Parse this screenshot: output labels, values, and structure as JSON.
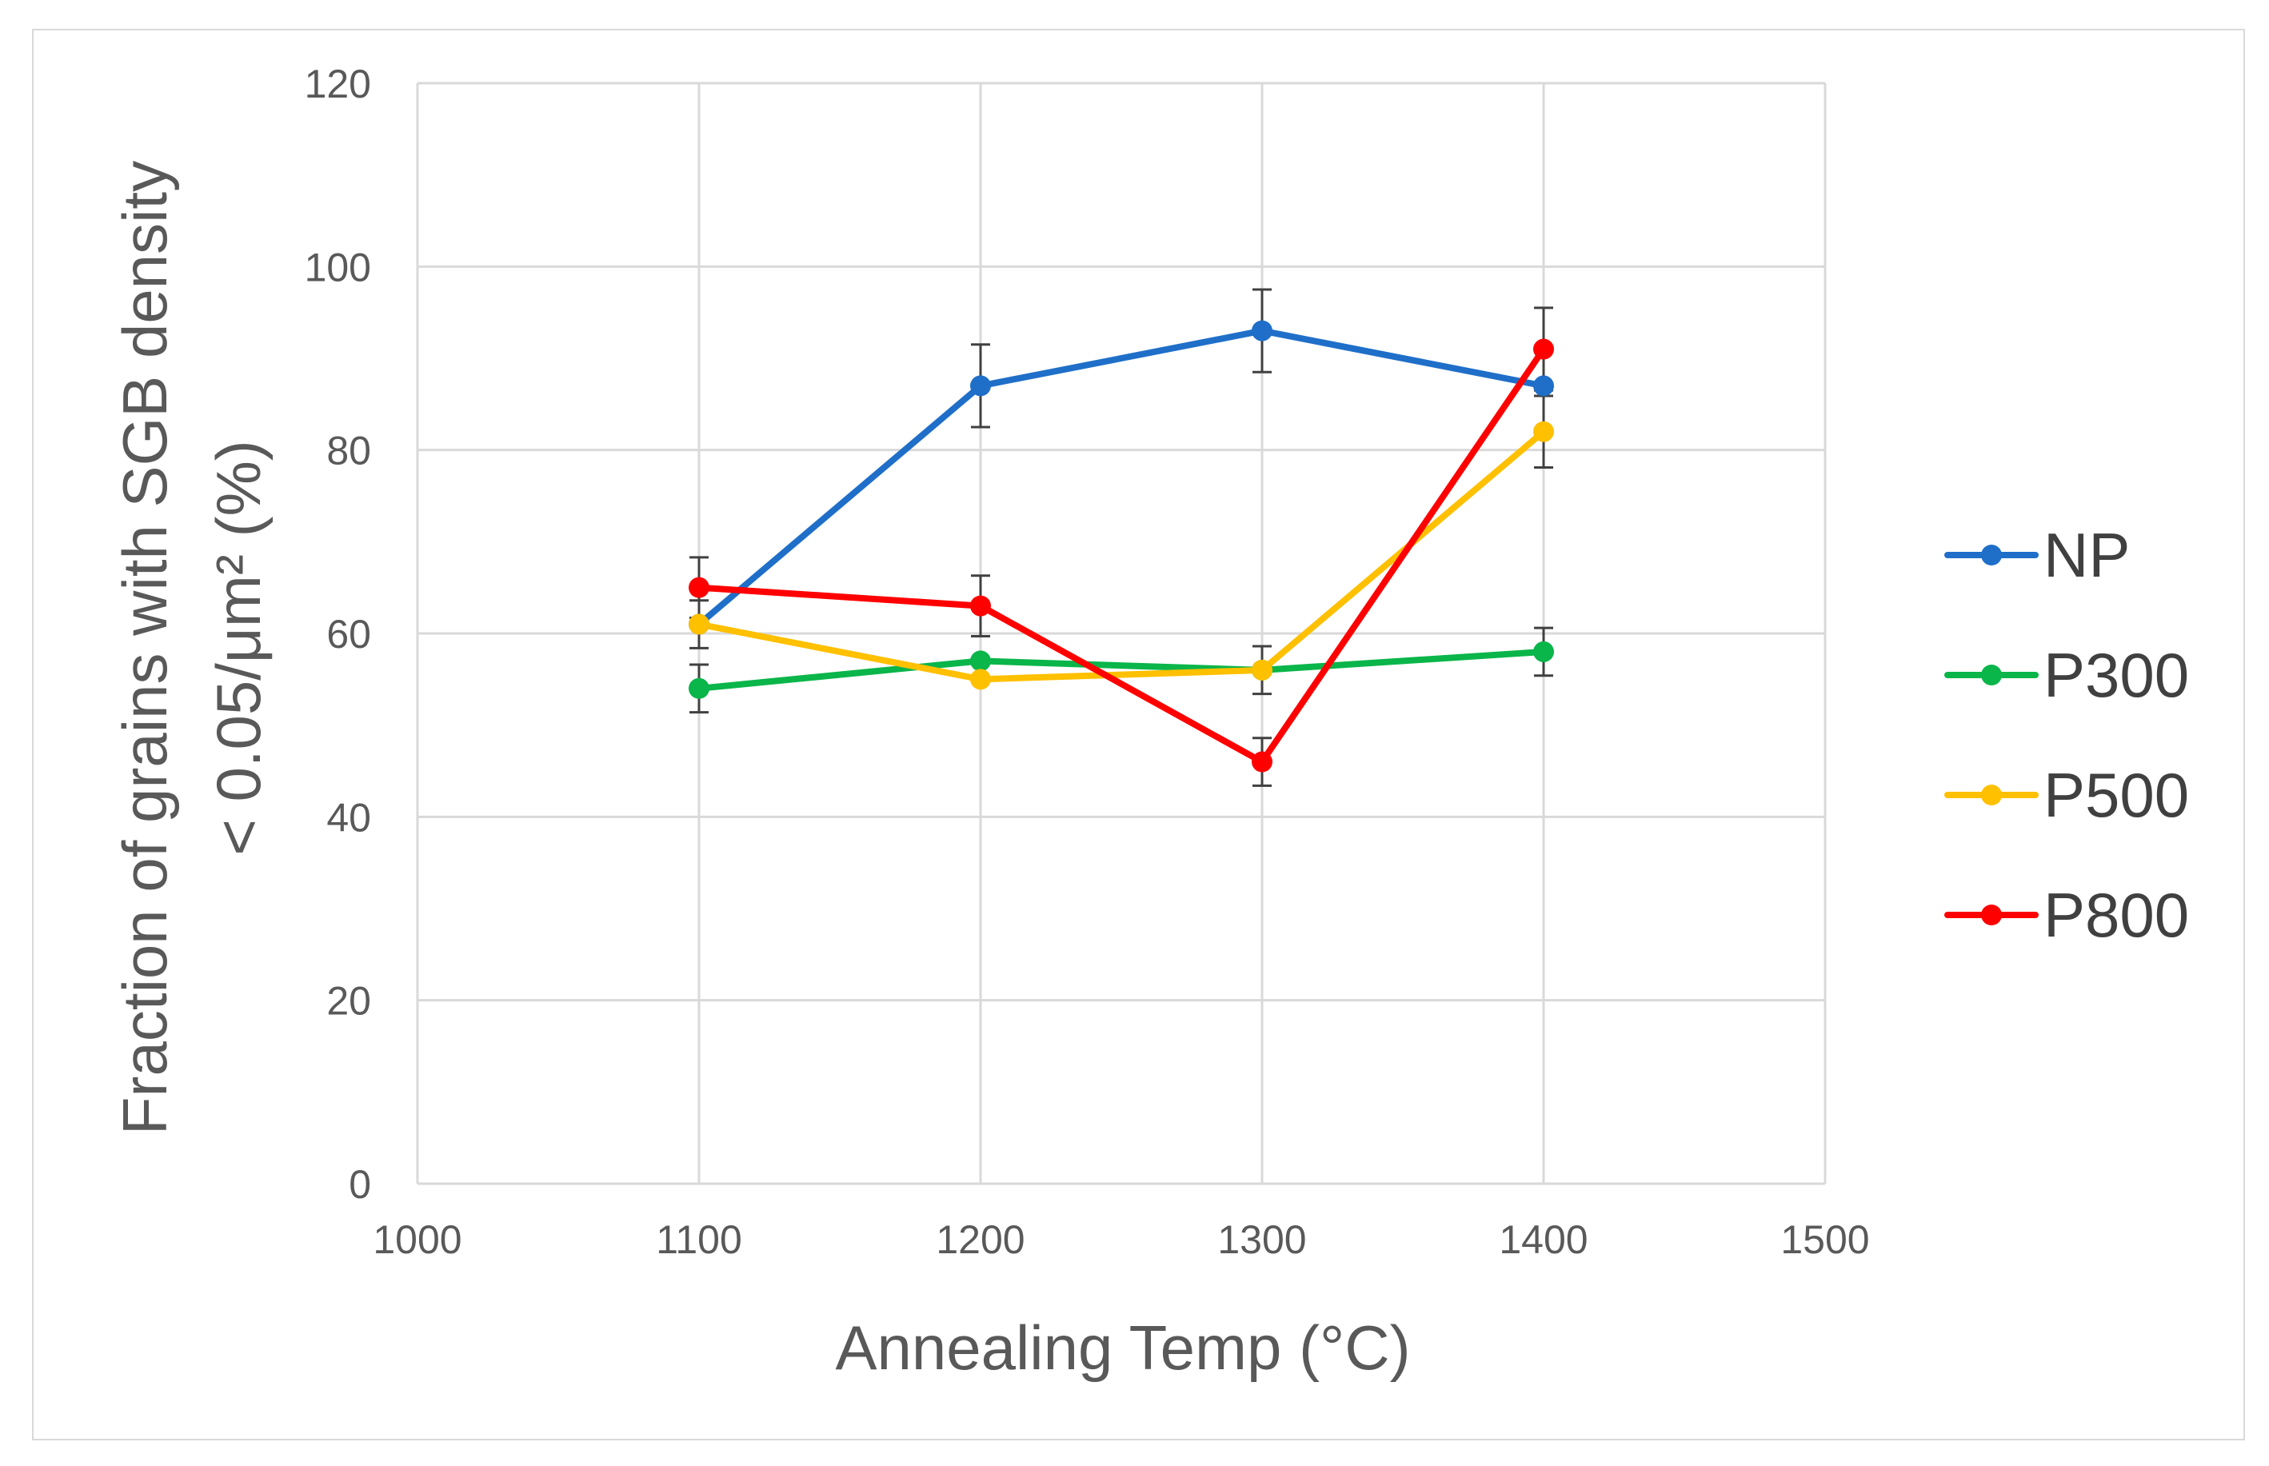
{
  "chart_data": {
    "type": "line",
    "title": "",
    "xlabel": "Annealing Temp (°C)",
    "ylabel_lines": [
      "Fraction of grains with SGB density",
      "< 0.05/μm² (%)"
    ],
    "xlim": [
      1000,
      1500
    ],
    "ylim": [
      0,
      120
    ],
    "x_ticks": [
      1000,
      1100,
      1200,
      1300,
      1400,
      1500
    ],
    "y_ticks": [
      0,
      20,
      40,
      60,
      80,
      100,
      120
    ],
    "grid": true,
    "legend_position": "right",
    "x": [
      1100,
      1200,
      1300,
      1400
    ],
    "series": [
      {
        "name": "NP",
        "color": "#1f6fc9",
        "values": [
          61,
          87,
          93,
          87
        ],
        "errors": [
          0,
          4.5,
          4.5,
          0
        ]
      },
      {
        "name": "P300",
        "color": "#0ab54a",
        "values": [
          54,
          57,
          56,
          58
        ],
        "errors": [
          2.6,
          0,
          2.6,
          2.6
        ]
      },
      {
        "name": "P500",
        "color": "#ffc000",
        "values": [
          61,
          55,
          56,
          82
        ],
        "errors": [
          2.6,
          0,
          0,
          3.9
        ]
      },
      {
        "name": "P800",
        "color": "#ff0000",
        "values": [
          65,
          63,
          46,
          91
        ],
        "errors": [
          3.3,
          3.3,
          2.6,
          4.5
        ]
      }
    ]
  }
}
